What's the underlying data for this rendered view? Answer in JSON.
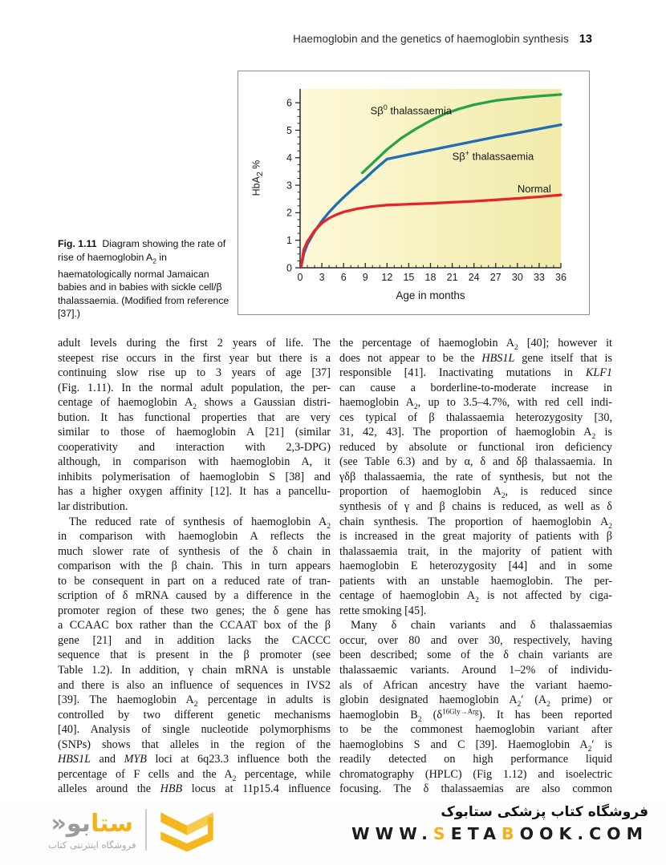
{
  "header": {
    "title": "Haemoglobin and the genetics of haemoglobin synthesis",
    "page_number": "13"
  },
  "figure": {
    "caption_html": "<b>Fig. 1.11</b>&nbsp;&nbsp;Diagram showing the rate of rise of haemoglobin A<sub>2</sub> in haematologically normal Jamaican babies and in babies with sickle cell/β thalassaemia. (Modified from reference [37].)",
    "chart_data": {
      "type": "line",
      "xlabel": "Age in months",
      "ylabel_html": "HbA<sub>2</sub> %",
      "xlim": [
        0,
        36
      ],
      "ylim": [
        0,
        6.5
      ],
      "x_major_ticks": [
        0,
        3,
        6,
        9,
        12,
        15,
        18,
        21,
        24,
        27,
        30,
        33,
        36
      ],
      "x_minor_step": 1,
      "y_major_ticks": [
        0,
        1,
        2,
        3,
        4,
        5,
        6
      ],
      "y_minor_step": 0.25,
      "plot_bg_gradient": [
        "#fdf9d8",
        "#f1ebaa"
      ],
      "axis_color": "#2a2a2a",
      "grid": false,
      "legend_position": "inline-labels",
      "series": [
        {
          "name": "Sβ0 thalassaemia",
          "label_html": "Sβ<sup>0</sup> thalassaemia",
          "color": "#27a24b",
          "points": [
            [
              8.6,
              3.45
            ],
            [
              10,
              3.8
            ],
            [
              11,
              4.05
            ],
            [
              12,
              4.3
            ],
            [
              14,
              4.72
            ],
            [
              16,
              5.05
            ],
            [
              18,
              5.35
            ],
            [
              20,
              5.6
            ],
            [
              22,
              5.78
            ],
            [
              24,
              5.93
            ],
            [
              27,
              6.08
            ],
            [
              30,
              6.17
            ],
            [
              33,
              6.24
            ],
            [
              36,
              6.3
            ]
          ],
          "label_at": [
            9.7,
            5.98
          ]
        },
        {
          "name": "Sβ+ thalassaemia",
          "label_html": "Sβ<sup>+</sup> thalassaemia",
          "color": "#1e6db6",
          "points": [
            [
              0.15,
              0.05
            ],
            [
              0.5,
              0.5
            ],
            [
              1,
              0.85
            ],
            [
              2,
              1.32
            ],
            [
              3,
              1.7
            ],
            [
              4,
              2.02
            ],
            [
              5,
              2.3
            ],
            [
              6,
              2.56
            ],
            [
              7,
              2.8
            ],
            [
              8,
              3.03
            ],
            [
              9,
              3.25
            ],
            [
              10,
              3.5
            ],
            [
              11,
              3.73
            ],
            [
              12,
              3.95
            ],
            [
              15,
              4.12
            ],
            [
              18,
              4.28
            ],
            [
              21,
              4.44
            ],
            [
              24,
              4.6
            ],
            [
              27,
              4.76
            ],
            [
              30,
              4.9
            ],
            [
              33,
              5.05
            ],
            [
              36,
              5.2
            ]
          ],
          "label_at": [
            21,
            4.31
          ]
        },
        {
          "name": "Normal",
          "label_html": "Normal",
          "color": "#e6252a",
          "points": [
            [
              0.15,
              0.05
            ],
            [
              0.5,
              0.65
            ],
            [
              1,
              0.95
            ],
            [
              2,
              1.35
            ],
            [
              3,
              1.62
            ],
            [
              4,
              1.8
            ],
            [
              5,
              1.93
            ],
            [
              6,
              2.03
            ],
            [
              8,
              2.15
            ],
            [
              10,
              2.23
            ],
            [
              12,
              2.28
            ],
            [
              15,
              2.31
            ],
            [
              18,
              2.34
            ],
            [
              21,
              2.38
            ],
            [
              24,
              2.42
            ],
            [
              27,
              2.47
            ],
            [
              30,
              2.52
            ],
            [
              33,
              2.58
            ],
            [
              36,
              2.65
            ]
          ],
          "label_at": [
            30,
            3.1
          ]
        }
      ]
    }
  },
  "body": {
    "left_lines": [
      {
        "t": "adult levels during the first 2 years of life. The"
      },
      {
        "t": "steepest rise occurs in the first year but there is a"
      },
      {
        "t": "continuing slow rise up to 3 years of age [37]"
      },
      {
        "t": "(Fig. 1.11). In the normal adult population, the per-"
      },
      {
        "t": "centage of haemoglobin A<sub>2</sub> shows a Gaussian distri-"
      },
      {
        "t": "bution. It has functional properties that are very"
      },
      {
        "t": "similar to those of haemoglobin A [21] (similar"
      },
      {
        "t": "cooperativity and interaction with 2,3-DPG)"
      },
      {
        "t": "although, in comparison with haemoglobin A, it"
      },
      {
        "t": "inhibits polymerisation of haemoglobin S [38] and"
      },
      {
        "t": "has a higher oxygen affinity [12]. It has a pancellu-"
      },
      {
        "t": "lar distribution.",
        "end": true
      },
      {
        "t": "The reduced rate of synthesis of haemoglobin A<sub>2</sub>",
        "ind": true
      },
      {
        "t": "in comparison with haemoglobin A reflects the"
      },
      {
        "t": "much slower rate of synthesis of the δ chain in"
      },
      {
        "t": "comparison with the β chain. This in turn appears"
      },
      {
        "t": "to be consequent in part on a reduced rate of tran-"
      },
      {
        "t": "scription of δ mRNA caused by a difference in the"
      },
      {
        "t": "promoter region of these two genes; the δ gene has"
      },
      {
        "t": "a CCAAC box rather than the CCAAT box of the β"
      },
      {
        "t": "gene [21] and in addition lacks the CACCC"
      },
      {
        "t": "sequence that is present in the β promoter (see"
      },
      {
        "t": "Table 1.2). In addition, γ chain mRNA is unstable"
      },
      {
        "t": "and there is also an influence of sequences in IVS2"
      },
      {
        "t": "[39]. The haemoglobin A<sub>2</sub> percentage in adults is"
      },
      {
        "t": "controlled by two different genetic mechanisms"
      },
      {
        "t": "[40]. Analysis of single nucleotide polymorphisms"
      },
      {
        "t": "(SNPs) shows that alleles in the region of the"
      },
      {
        "t": "<i>HBS1L</i> and <i>MYB</i> loci at 6q23.3 influence both the"
      },
      {
        "t": "percentage of F cells and the A<sub>2</sub> percentage, while"
      },
      {
        "t": "alleles around the <i>HBB</i> locus at 11p15.4 influence"
      }
    ],
    "right_lines": [
      {
        "t": "the percentage of haemoglobin A<sub>2</sub> [40]; however it"
      },
      {
        "t": "does not appear to be the <i>HBS1L</i> gene itself that is"
      },
      {
        "t": "responsible [41]. Inactivating mutations in <i>KLF1</i>"
      },
      {
        "t": "can cause a borderline-to-moderate increase in"
      },
      {
        "t": "haemoglobin A<sub>2</sub>, up to 3.5–4.7%, with red cell indi-"
      },
      {
        "t": "ces typical of β thalassaemia heterozygosity [30,"
      },
      {
        "t": "31, 42, 43]. The proportion of haemoglobin A<sub>2</sub> is"
      },
      {
        "t": "reduced by absolute or functional iron deficiency"
      },
      {
        "t": "(see Table 6.3) and by α, δ and δβ thalassaemia. In"
      },
      {
        "t": "γδβ thalassaemia, the rate of synthesis, but not the"
      },
      {
        "t": "proportion of haemoglobin A<sub>2</sub>, is reduced since"
      },
      {
        "t": "synthesis of γ and β chains is reduced, as well as δ"
      },
      {
        "t": "chain synthesis. The proportion of haemoglobin A<sub>2</sub>"
      },
      {
        "t": "is increased in the great majority of patients with β"
      },
      {
        "t": "thalassaemia trait, in the majority of patient with"
      },
      {
        "t": "haemoglobin E heterozygosity [44] and in some"
      },
      {
        "t": "patients with an unstable haemoglobin. The per-"
      },
      {
        "t": "centage of haemoglobin A<sub>2</sub> is not affected by ciga-"
      },
      {
        "t": "rette smoking [45].",
        "end": true
      },
      {
        "t": "Many δ chain variants and δ thalassaemias",
        "ind": true
      },
      {
        "t": "occur, over 80 and over 30, respectively, having"
      },
      {
        "t": "been described; some of the δ chain variants are"
      },
      {
        "t": "thalassaemic variants. Around 1–2% of individu-"
      },
      {
        "t": "als of African ancestry have the variant haemo-"
      },
      {
        "t": "globin designated haemoglobin A<sub>2</sub>′ (A<sub>2</sub> prime) or"
      },
      {
        "t": "haemoglobin B<sub>2</sub> (δ<sup>16Gly→Arg</sup>). It has been reported"
      },
      {
        "t": "to be the commonest haemoglobin variant after"
      },
      {
        "t": "haemoglobins S and C [39]. Haemoglobin A<sub>2</sub>′ is"
      },
      {
        "t": "readily detected on high performance liquid"
      },
      {
        "t": "chromatography (HPLC) (Fig 1.12) and isoelectric"
      },
      {
        "t": "focusing. The δ thalassaemias are also common"
      }
    ]
  },
  "footer": {
    "logo_word_gold": "ستا",
    "logo_word_gray": "بو",
    "logo_mark": "«",
    "logo_subtext": "فروشگاه اینترنتی کتاب",
    "site_title": "فروشگاه کتاب پزشکی ستابوک",
    "site_url_segments": [
      {
        "t": "WWW.",
        "c": "dark"
      },
      {
        "t": "S",
        "c": "yellow"
      },
      {
        "t": "ETA",
        "c": "dark"
      },
      {
        "t": "B",
        "c": "yellow"
      },
      {
        "t": "OOK.COM",
        "c": "dark"
      }
    ],
    "brand_yellow": "#f2b21c",
    "brand_gray": "#9c9c9c"
  }
}
